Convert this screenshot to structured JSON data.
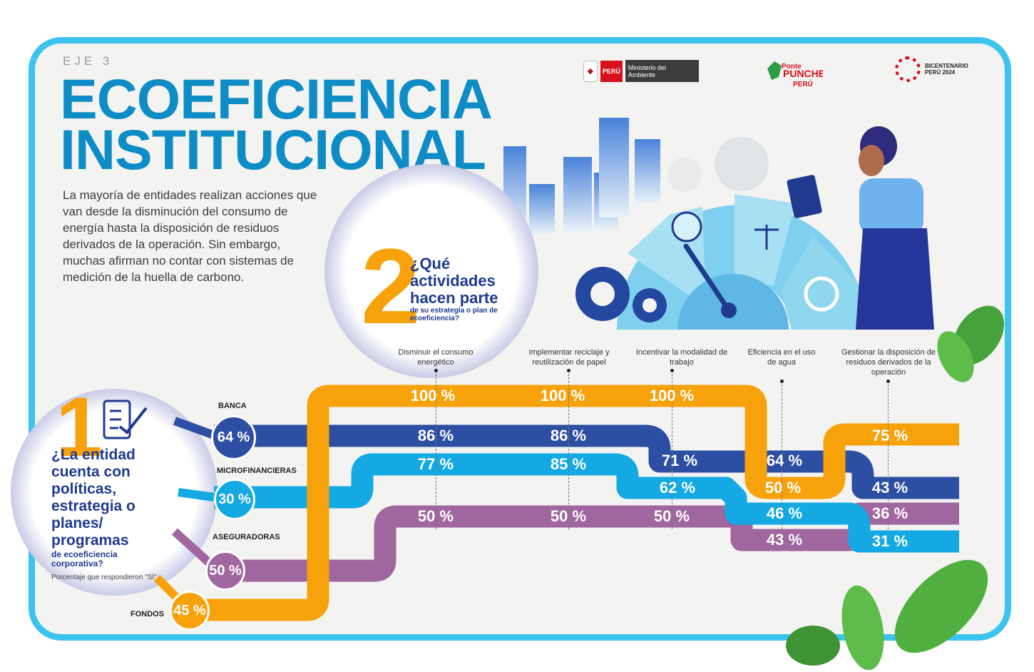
{
  "header": {
    "eje": "EJE 3",
    "title_line1": "ECOEFICIENCIA",
    "title_line2": "INSTITUCIONAL",
    "intro": "La mayoría de entidades realizan acciones que van desde la disminución del consumo de energía hasta la disposición de residuos derivados de la operación. Sin embargo, muchas afirman no contar con sistemas de medición de la huella de carbono."
  },
  "logos": {
    "peru": "PERÚ",
    "ministerio": "Ministerio del Ambiente",
    "ponte": "Ponte PUNCHE y pensemos todos PERÚ",
    "bicentenario": "BICENTENARIO PERÚ 2024"
  },
  "question2": {
    "number": "2",
    "title": "¿Qué actividades hacen parte",
    "subtitle": "de su estrategia o plan de ecoeficiencia?"
  },
  "question1": {
    "number": "1",
    "title": "¿La entidad cuenta con políticas, estrategia o planes/ programas",
    "subtitle": "de ecoeficiencia corporativa?",
    "note": "Porcentaje que respondieron \"SÍ\""
  },
  "colors": {
    "banca": "#2d4fa3",
    "microfinancieras": "#14a9e3",
    "aseguradoras": "#a0669f",
    "fondos": "#f7a20b",
    "title": "#0d8cc6",
    "frame": "#3cc3ee"
  },
  "chart_data": {
    "type": "table",
    "title": "¿Qué actividades hacen parte de su estrategia o plan de ecoeficiencia?",
    "categories": [
      "Disminuir el consumo energético",
      "Implementar reciclaje y reutilización de papel",
      "Incentivar la modalidad de trabajo",
      "Eficiencia en el uso de agua",
      "Gestionar la disposición de residuos derivados de la operación"
    ],
    "series": [
      {
        "name": "BANCA",
        "policy": 64,
        "values": [
          86,
          86,
          71,
          64,
          43
        ]
      },
      {
        "name": "MICROFINANCIERAS",
        "policy": 30,
        "values": [
          77,
          85,
          62,
          46,
          31
        ]
      },
      {
        "name": "ASEGURADORAS",
        "policy": 50,
        "values": [
          50,
          50,
          50,
          43,
          36
        ]
      },
      {
        "name": "FONDOS",
        "policy": 45,
        "values": [
          100,
          100,
          100,
          50,
          75
        ]
      }
    ],
    "unit": "%"
  }
}
